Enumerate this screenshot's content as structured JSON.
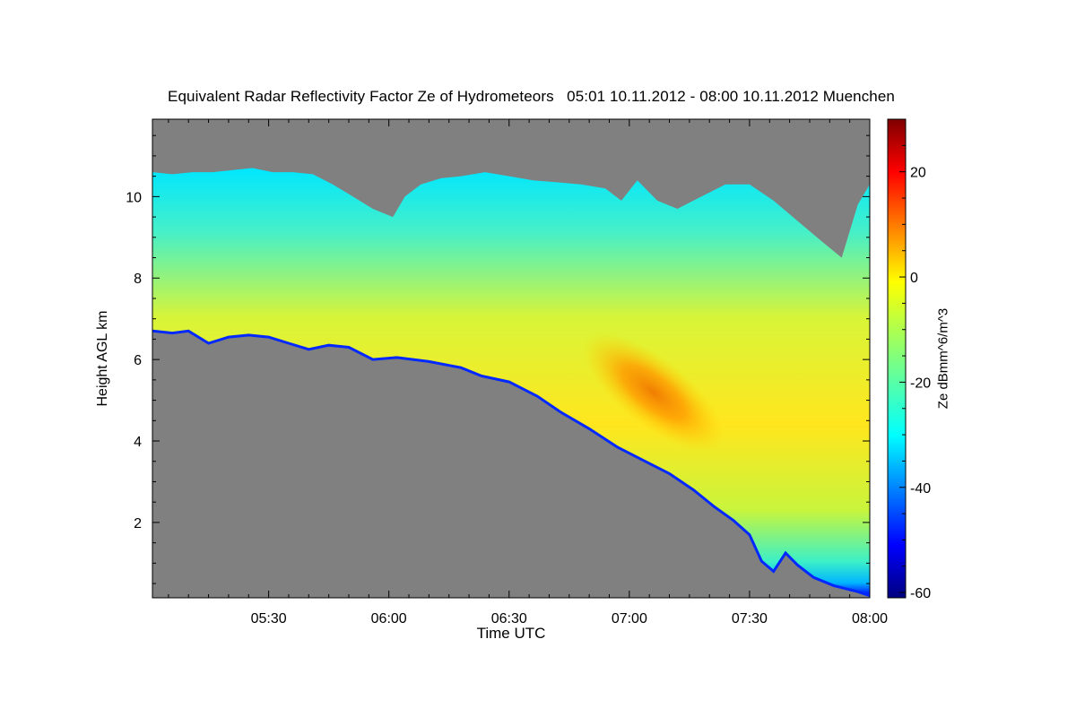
{
  "chart_data": {
    "type": "heatmap",
    "title": "Equivalent Radar Reflectivity Factor Ze of Hydrometeors   05:01 10.11.2012 - 08:00 10.11.2012 Muenchen",
    "xlabel": "Time UTC",
    "ylabel": "Height AGL km",
    "colorbar_label": "Ze dBmm^6/m^3",
    "x_range_minutes_utc": [
      301,
      480
    ],
    "x_ticks": [
      {
        "label": "05:30",
        "minutes": 330
      },
      {
        "label": "06:00",
        "minutes": 360
      },
      {
        "label": "06:30",
        "minutes": 390
      },
      {
        "label": "07:00",
        "minutes": 420
      },
      {
        "label": "07:30",
        "minutes": 450
      },
      {
        "label": "08:00",
        "minutes": 480
      }
    ],
    "y_range_km": [
      0.15,
      11.9
    ],
    "y_ticks": [
      2,
      4,
      6,
      8,
      10
    ],
    "colorbar_range": [
      -61,
      30
    ],
    "colorbar_ticks": [
      20,
      0,
      -20,
      -40,
      -60
    ],
    "colormap": "jet",
    "no_data_color": "#808080",
    "echo_base_km": [
      [
        301,
        6.7
      ],
      [
        306,
        6.65
      ],
      [
        310,
        6.7
      ],
      [
        315,
        6.4
      ],
      [
        320,
        6.55
      ],
      [
        325,
        6.6
      ],
      [
        330,
        6.55
      ],
      [
        335,
        6.4
      ],
      [
        340,
        6.25
      ],
      [
        345,
        6.35
      ],
      [
        350,
        6.3
      ],
      [
        356,
        6.0
      ],
      [
        362,
        6.05
      ],
      [
        370,
        5.95
      ],
      [
        378,
        5.8
      ],
      [
        383,
        5.6
      ],
      [
        390,
        5.45
      ],
      [
        397,
        5.1
      ],
      [
        403,
        4.7
      ],
      [
        410,
        4.3
      ],
      [
        417,
        3.85
      ],
      [
        424,
        3.5
      ],
      [
        430,
        3.2
      ],
      [
        436,
        2.8
      ],
      [
        441,
        2.4
      ],
      [
        446,
        2.05
      ],
      [
        450,
        1.7
      ],
      [
        453,
        1.05
      ],
      [
        456,
        0.8
      ],
      [
        459,
        1.25
      ],
      [
        462,
        0.95
      ],
      [
        466,
        0.65
      ],
      [
        471,
        0.45
      ],
      [
        477,
        0.3
      ],
      [
        480,
        0.2
      ]
    ],
    "echo_top_km": [
      [
        301,
        10.6
      ],
      [
        306,
        10.55
      ],
      [
        311,
        10.6
      ],
      [
        316,
        10.6
      ],
      [
        321,
        10.65
      ],
      [
        326,
        10.7
      ],
      [
        331,
        10.6
      ],
      [
        336,
        10.6
      ],
      [
        341,
        10.55
      ],
      [
        346,
        10.3
      ],
      [
        351,
        10.0
      ],
      [
        356,
        9.7
      ],
      [
        361,
        9.5
      ],
      [
        364,
        10.0
      ],
      [
        368,
        10.3
      ],
      [
        373,
        10.45
      ],
      [
        378,
        10.5
      ],
      [
        384,
        10.6
      ],
      [
        390,
        10.5
      ],
      [
        396,
        10.4
      ],
      [
        402,
        10.35
      ],
      [
        408,
        10.3
      ],
      [
        414,
        10.2
      ],
      [
        418,
        9.9
      ],
      [
        422,
        10.4
      ],
      [
        427,
        9.9
      ],
      [
        432,
        9.7
      ],
      [
        438,
        10.0
      ],
      [
        444,
        10.3
      ],
      [
        450,
        10.3
      ],
      [
        456,
        9.9
      ],
      [
        462,
        9.4
      ],
      [
        468,
        8.9
      ],
      [
        473,
        8.5
      ],
      [
        477,
        9.8
      ],
      [
        480,
        10.3
      ]
    ],
    "core_max_dbz": 14,
    "core_location": {
      "minutes": 426,
      "height_km": 5.2
    }
  }
}
